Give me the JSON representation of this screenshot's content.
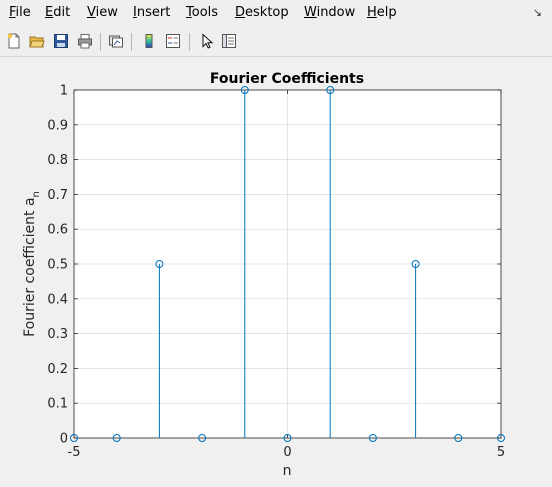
{
  "menubar": {
    "items": [
      {
        "accel": "F",
        "rest": "ile"
      },
      {
        "accel": "E",
        "rest": "dit"
      },
      {
        "accel": "V",
        "rest": "iew"
      },
      {
        "accel": "I",
        "rest": "nsert"
      },
      {
        "accel": "T",
        "rest": "ools"
      },
      {
        "accel": "D",
        "rest": "esktop"
      },
      {
        "accel": "W",
        "rest": "indow"
      },
      {
        "accel": "H",
        "rest": "elp"
      }
    ],
    "restore_symbol": "↘"
  },
  "toolbar": {
    "icons": [
      "new-file-icon",
      "open-folder-icon",
      "save-icon",
      "print-icon",
      "link-plot-icon",
      "colorbar-icon",
      "legend-icon",
      "pointer-icon",
      "property-editor-icon"
    ]
  },
  "colors": {
    "stem": "#0072bd",
    "grid": "#dcdcdc",
    "axes": "#262626"
  },
  "chart_data": {
    "type": "stem",
    "title": "Fourier Coefficients",
    "xlabel": "n",
    "ylabel_main": "Fourier coefficient a",
    "ylabel_subscript": "n",
    "xlim": [
      -5,
      5
    ],
    "ylim": [
      0,
      1
    ],
    "xticks": [
      "-5",
      "0",
      "5"
    ],
    "yticks": [
      "0",
      "0.1",
      "0.2",
      "0.3",
      "0.4",
      "0.5",
      "0.6",
      "0.7",
      "0.8",
      "0.9",
      "1"
    ],
    "x": [
      -5,
      -4,
      -3,
      -2,
      -1,
      0,
      1,
      2,
      3,
      4,
      5
    ],
    "values": [
      0,
      0,
      0.5,
      0,
      1,
      0,
      1,
      0,
      0.5,
      0,
      0
    ],
    "grid": true,
    "marker": "circle"
  }
}
